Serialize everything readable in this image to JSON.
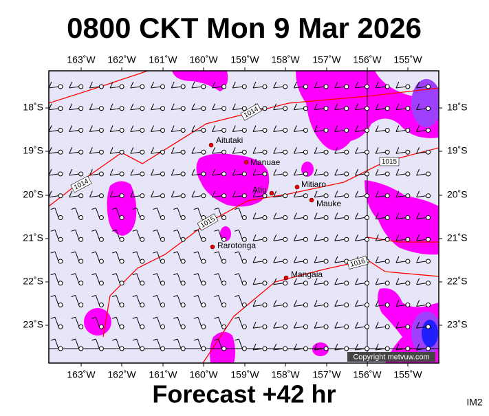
{
  "header": {
    "title": "0800 CKT Mon 9 Mar 2026"
  },
  "map": {
    "longitude_labels": [
      "163˚W",
      "162˚W",
      "161˚W",
      "160˚W",
      "159˚W",
      "158˚W",
      "157˚W",
      "156˚W",
      "155˚W"
    ],
    "latitude_labels": [
      "18˚S",
      "19˚S",
      "20˚S",
      "21˚S",
      "22˚S",
      "23˚S"
    ],
    "places": [
      "Aitutaki",
      "Manuae",
      "Atiu",
      "Mitiaro",
      "Mauke",
      "Rarotonga",
      "Mangaia"
    ],
    "isobar_labels": [
      "1014",
      "1014",
      "1015",
      "1015",
      "1016"
    ],
    "copyright": "Copyright metvuw.com"
  },
  "footer": {
    "forecast": "Forecast +42 hr",
    "image_id": "IM2"
  }
}
